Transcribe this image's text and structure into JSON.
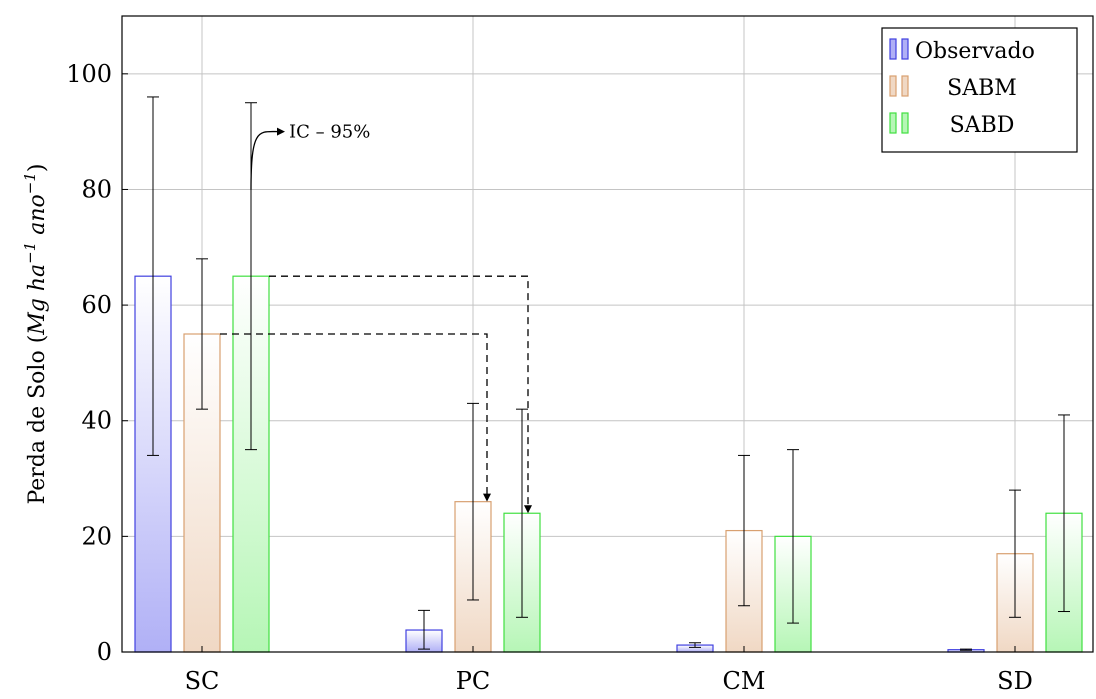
{
  "chart_data": {
    "type": "bar",
    "categories": [
      "SC",
      "PC",
      "CM",
      "SD"
    ],
    "ylabel_prefix": "Perda de Solo (",
    "ylabel_unit": "Mg ha",
    "ylabel_exp1": "−1",
    "ylabel_unit2": " ano",
    "ylabel_exp2": "−1",
    "ylabel_suffix": ")",
    "ylim": [
      0,
      110
    ],
    "yticks": [
      0,
      20,
      40,
      60,
      80,
      100
    ],
    "grid": true,
    "legend_position": "top-right",
    "series": [
      {
        "name": "Observado",
        "color": "#4040e0",
        "fill": "#b0b0f6",
        "values": [
          65,
          3.8,
          1.2,
          0.4
        ],
        "err_low": [
          34,
          0.5,
          0.8,
          0.3
        ],
        "err_high": [
          96,
          7.2,
          1.6,
          0.5
        ]
      },
      {
        "name": "SABM",
        "color": "#d8a070",
        "fill": "#f0d8c4",
        "values": [
          55,
          26,
          21,
          17
        ],
        "err_low": [
          42,
          9,
          8,
          6
        ],
        "err_high": [
          68,
          43,
          34,
          28
        ]
      },
      {
        "name": "SABD",
        "color": "#40e040",
        "fill": "#b6f6b6",
        "values": [
          65,
          24,
          20,
          24
        ],
        "err_low": [
          35,
          6,
          5,
          7
        ],
        "err_high": [
          95,
          42,
          35,
          41
        ]
      }
    ],
    "annotations": [
      {
        "text": "IC – 95%"
      }
    ]
  }
}
